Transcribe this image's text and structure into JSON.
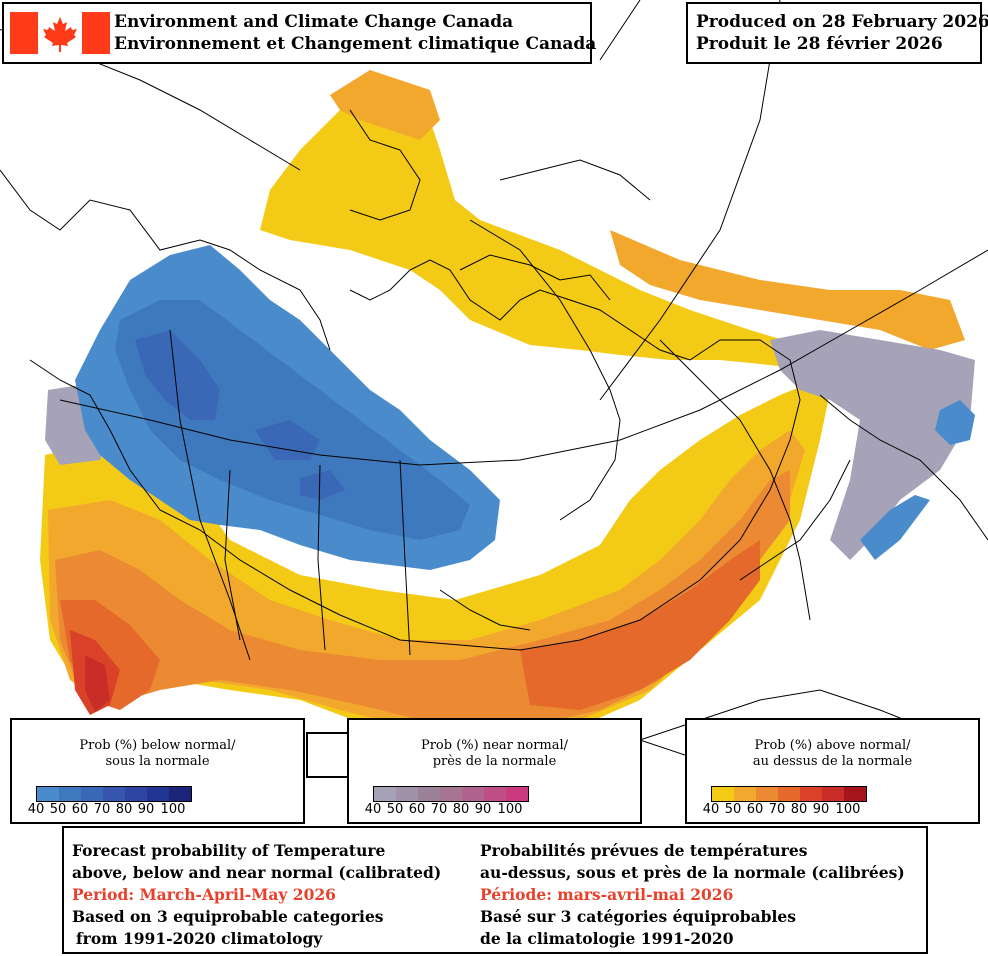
{
  "header": {
    "agency_en": "Environment and Climate Change Canada",
    "agency_fr": "Environnement et Changement climatique Canada",
    "produced_en": "Produced on 28 February 2026",
    "produced_fr": "Produit le 28 février 2026"
  },
  "legends": [
    {
      "title_en": "Prob (%) below normal/",
      "title_fr": "sous la normale",
      "ticks": [
        "40",
        "50",
        "60",
        "70",
        "80",
        "90",
        "100"
      ],
      "colors": [
        "#4a8ccb",
        "#3f79bd",
        "#3a68b6",
        "#3656ad",
        "#2d45a0",
        "#213592",
        "#1a2478"
      ]
    },
    {
      "title_en": "Prob (%) near normal/",
      "title_fr": "près de la normale",
      "ticks": [
        "40",
        "50",
        "60",
        "70",
        "80",
        "90",
        "100"
      ],
      "colors": [
        "#a6a3b8",
        "#a192a9",
        "#9c8299",
        "#a57591",
        "#b0638c",
        "#bf4d86",
        "#c93a7f"
      ]
    },
    {
      "title_en": "Prob (%) above normal/",
      "title_fr": "au dessus de la normale",
      "ticks": [
        "40",
        "50",
        "60",
        "70",
        "80",
        "90",
        "100"
      ],
      "colors": [
        "#f3cb17",
        "#f2a72d",
        "#eb8a32",
        "#e4692a",
        "#d94229",
        "#c92d28",
        "#a5151b"
      ]
    }
  ],
  "caption": {
    "en": {
      "line1": "Forecast probability of Temperature",
      "line2": "above, below and near normal (calibrated)",
      "period": "Period: March-April-May 2026",
      "line4": "Based on 3 equiprobable categories",
      "line5": "from 1991-2020 climatology"
    },
    "fr": {
      "line1": "Probabilités prévues de températures",
      "line2": "au-dessus, sous et près de la normale (calibrées)",
      "period": "Période: mars-avril-mai 2026",
      "line4": "Basé sur 3 catégories équiprobables",
      "line5": "de la climatologie 1991-2020"
    }
  },
  "colors": {
    "above_40": "#f3cb17",
    "above_50": "#f2a72d",
    "above_60": "#eb8a32",
    "above_70": "#e4692a",
    "above_80": "#d94229",
    "above_90": "#c92d28",
    "below_40": "#4a8ccb",
    "below_50": "#3f79bd",
    "below_60": "#3a68b6",
    "below_70": "#3656ad",
    "near_40": "#a6a3b8",
    "canada_flag_red": "#ff3b1a"
  }
}
